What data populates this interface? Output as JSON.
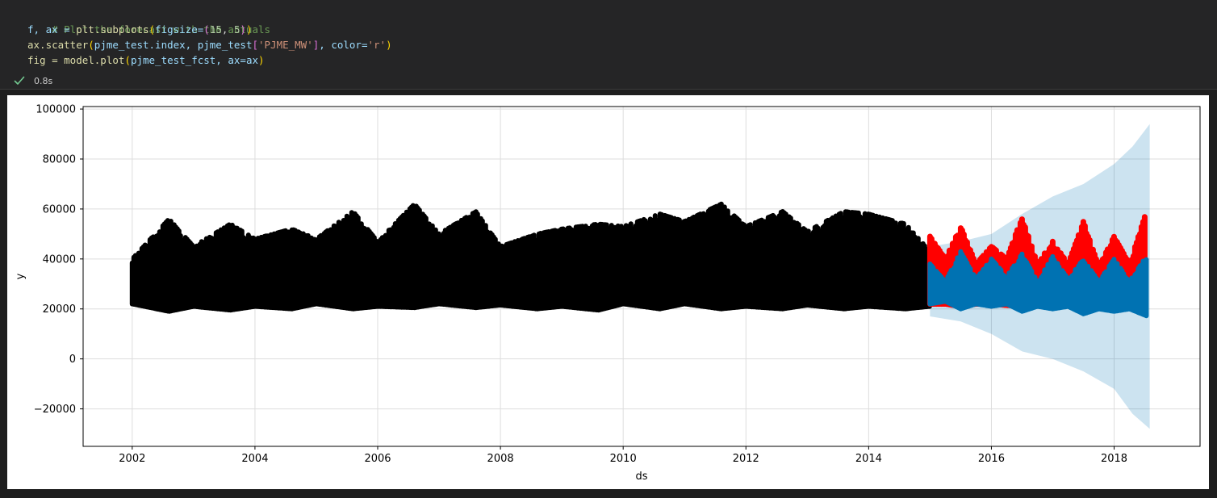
{
  "code": {
    "comment": "# Plot the forecast with the actuals",
    "line2": {
      "t1": "f, ax = ",
      "t2": "plt.subplots",
      "t3": "(",
      "t4": "figsize=",
      "t5": "(",
      "t6": "15",
      "t7": ", ",
      "t8": "5",
      "t9": ")",
      "t10": ")"
    },
    "line3": {
      "t1": "ax.scatter",
      "t2": "(",
      "t3": "pjme_test.index, pjme_test",
      "t4": "[",
      "t5": "'PJME_MW'",
      "t6": "]",
      "t7": ", color=",
      "t8": "'r'",
      "t9": ")"
    },
    "line4": {
      "t1": "fig = model.plot",
      "t2": "(",
      "t3": "pjme_test_fcst, ax=ax",
      "t4": ")"
    }
  },
  "status": {
    "icon": "check-icon",
    "time": "0.8s",
    "color": "#73c991"
  },
  "chart_data": {
    "type": "scatter",
    "xlabel": "ds",
    "ylabel": "y",
    "xlim": [
      2001.2,
      2019.4
    ],
    "ylim": [
      -35000,
      101000
    ],
    "xticks": [
      "2002",
      "2004",
      "2006",
      "2008",
      "2010",
      "2012",
      "2014",
      "2016",
      "2018"
    ],
    "yticks": [
      "100000",
      "80000",
      "60000",
      "40000",
      "20000",
      "0",
      "−20000"
    ],
    "grid": true,
    "series": [
      {
        "kind": "training-actuals",
        "color": "#000000",
        "x": [
          2002.0,
          2002.6,
          2003.0,
          2003.6,
          2004.0,
          2004.6,
          2005.0,
          2005.6,
          2006.0,
          2006.6,
          2007.0,
          2007.6,
          2008.0,
          2008.6,
          2009.0,
          2009.6,
          2010.0,
          2010.6,
          2011.0,
          2011.6,
          2012.0,
          2012.6,
          2013.0,
          2013.6,
          2014.0,
          2014.6,
          2015.0
        ],
        "low": [
          22000,
          19000,
          21000,
          19500,
          21000,
          20000,
          22000,
          20000,
          21000,
          20500,
          22000,
          20500,
          21500,
          20000,
          21000,
          19500,
          22000,
          20000,
          22000,
          20000,
          21000,
          20000,
          21500,
          20000,
          21000,
          20000,
          21000
        ],
        "high": [
          40000,
          56000,
          45000,
          54000,
          48000,
          52000,
          48000,
          59000,
          47000,
          62000,
          50000,
          59000,
          45000,
          50000,
          52000,
          54000,
          53000,
          58000,
          55000,
          62000,
          53000,
          59000,
          51000,
          59000,
          58000,
          54000,
          43000
        ]
      },
      {
        "kind": "test-actuals",
        "color": "#ff0000",
        "x": [
          2015.0,
          2015.25,
          2015.5,
          2015.75,
          2016.0,
          2016.25,
          2016.5,
          2016.75,
          2017.0,
          2017.25,
          2017.5,
          2017.75,
          2018.0,
          2018.25,
          2018.5
        ],
        "low": [
          22000,
          22000,
          21000,
          22000,
          22000,
          21500,
          21000,
          22000,
          22000,
          22000,
          21000,
          22000,
          22000,
          22000,
          22000
        ],
        "high": [
          49000,
          40000,
          53000,
          38000,
          45000,
          40000,
          57000,
          38000,
          47000,
          38000,
          55000,
          37000,
          49000,
          38000,
          57000
        ]
      },
      {
        "kind": "forecast-yhat",
        "color": "#0072b2",
        "x": [
          2015.0,
          2015.25,
          2015.5,
          2015.75,
          2016.0,
          2016.25,
          2016.5,
          2016.75,
          2017.0,
          2017.25,
          2017.5,
          2017.75,
          2018.0,
          2018.25,
          2018.55
        ],
        "low": [
          22000,
          23000,
          20000,
          22000,
          21000,
          22000,
          19000,
          21000,
          20000,
          21000,
          18000,
          20000,
          19000,
          20000,
          17000
        ],
        "high": [
          38000,
          31000,
          43000,
          32000,
          40000,
          33000,
          42000,
          31000,
          41000,
          32000,
          40000,
          31000,
          40000,
          31000,
          42000
        ]
      },
      {
        "kind": "forecast-interval",
        "color": "#0072b2",
        "x": [
          2015.0,
          2015.5,
          2016.0,
          2016.5,
          2017.0,
          2017.5,
          2018.0,
          2018.3,
          2018.58
        ],
        "low": [
          17000,
          15000,
          10000,
          3000,
          0,
          -5000,
          -12000,
          -22000,
          -28000
        ],
        "high": [
          45000,
          47000,
          50000,
          58000,
          65000,
          70000,
          78000,
          85000,
          94000
        ]
      }
    ]
  }
}
